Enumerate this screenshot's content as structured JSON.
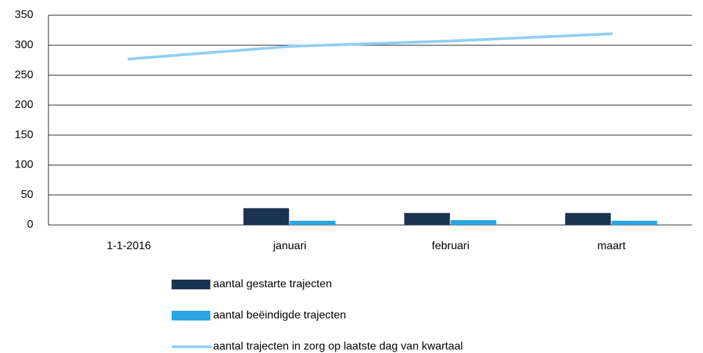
{
  "chart_data": {
    "type": "bar",
    "categories": [
      "1-1-2016",
      "januari",
      "februari",
      "maart"
    ],
    "series": [
      {
        "name": "aantal gestarte trajecten",
        "type": "bar",
        "color": "#1b3352",
        "values": [
          null,
          28,
          20,
          20
        ]
      },
      {
        "name": "aantal beëindigde trajecten",
        "type": "bar",
        "color": "#2aa4e3",
        "values": [
          null,
          7,
          8,
          7
        ]
      },
      {
        "name": "aantal trajecten in zorg op laatste dag van kwartaal",
        "type": "line",
        "color": "#8fd0f3",
        "values": [
          277,
          298,
          307,
          319
        ]
      }
    ],
    "ylim": [
      0,
      350
    ],
    "yticks": [
      0,
      50,
      100,
      150,
      200,
      250,
      300,
      350
    ],
    "grid": true,
    "legend": "bottom"
  }
}
